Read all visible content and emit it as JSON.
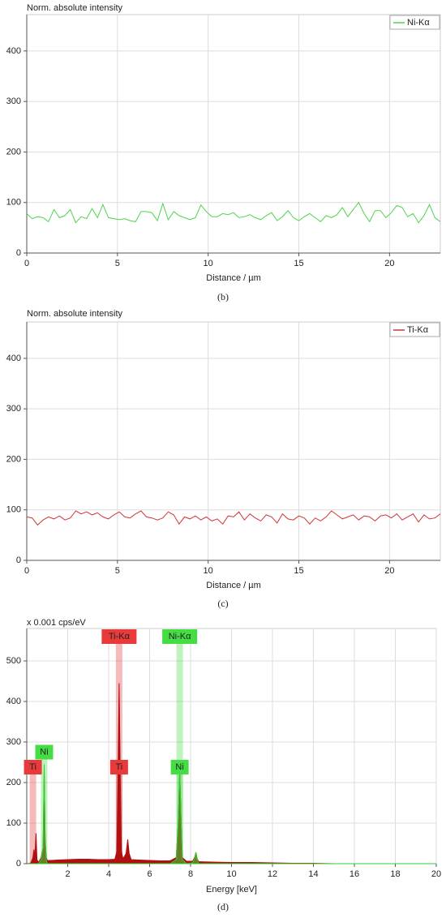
{
  "chart_data": [
    {
      "type": "line",
      "ylabel": "Norm. absolute intensity",
      "xlabel": "Distance / µm",
      "caption": "(b)",
      "x": [
        0,
        0.3,
        0.6,
        0.9,
        1.2,
        1.5,
        1.8,
        2.1,
        2.4,
        2.7,
        3,
        3.3,
        3.6,
        3.9,
        4.2,
        4.5,
        4.8,
        5.1,
        5.4,
        5.7,
        6,
        6.3,
        6.6,
        6.9,
        7.2,
        7.5,
        7.8,
        8.1,
        8.4,
        8.7,
        9,
        9.3,
        9.6,
        9.9,
        10.2,
        10.5,
        10.8,
        11.1,
        11.4,
        11.7,
        12,
        12.3,
        12.6,
        12.9,
        13.2,
        13.5,
        13.8,
        14.1,
        14.4,
        14.7,
        15,
        15.3,
        15.6,
        15.9,
        16.2,
        16.5,
        16.8,
        17.1,
        17.4,
        17.7,
        18,
        18.3,
        18.6,
        18.9,
        19.2,
        19.5,
        19.8,
        20.1,
        20.4,
        20.7,
        21,
        21.3,
        21.6,
        21.9,
        22.2,
        22.5,
        22.8
      ],
      "series": [
        {
          "name": "Ni-Kα",
          "color": "#4cd44c",
          "values": [
            78,
            68,
            72,
            70,
            62,
            86,
            70,
            74,
            86,
            60,
            72,
            68,
            88,
            70,
            96,
            70,
            68,
            66,
            68,
            64,
            62,
            82,
            82,
            80,
            64,
            98,
            66,
            82,
            74,
            70,
            66,
            70,
            95,
            82,
            72,
            72,
            78,
            76,
            80,
            70,
            72,
            76,
            70,
            66,
            74,
            80,
            64,
            72,
            84,
            70,
            64,
            72,
            78,
            70,
            62,
            74,
            70,
            76,
            90,
            72,
            86,
            100,
            78,
            62,
            84,
            84,
            70,
            80,
            94,
            90,
            72,
            78,
            60,
            74,
            96,
            70,
            62
          ]
        }
      ],
      "xlim": [
        0,
        22.8
      ],
      "ylim": [
        0,
        472
      ],
      "xticks": [
        0,
        5,
        10,
        15,
        20
      ],
      "yticks": [
        0,
        100,
        200,
        300,
        400
      ],
      "grid": true,
      "legend": "upper right"
    },
    {
      "type": "line",
      "ylabel": "Norm. absolute intensity",
      "xlabel": "Distance / µm",
      "caption": "(c)",
      "x": [
        0,
        0.3,
        0.6,
        0.9,
        1.2,
        1.5,
        1.8,
        2.1,
        2.4,
        2.7,
        3,
        3.3,
        3.6,
        3.9,
        4.2,
        4.5,
        4.8,
        5.1,
        5.4,
        5.7,
        6,
        6.3,
        6.6,
        6.9,
        7.2,
        7.5,
        7.8,
        8.1,
        8.4,
        8.7,
        9,
        9.3,
        9.6,
        9.9,
        10.2,
        10.5,
        10.8,
        11.1,
        11.4,
        11.7,
        12,
        12.3,
        12.6,
        12.9,
        13.2,
        13.5,
        13.8,
        14.1,
        14.4,
        14.7,
        15,
        15.3,
        15.6,
        15.9,
        16.2,
        16.5,
        16.8,
        17.1,
        17.4,
        17.7,
        18,
        18.3,
        18.6,
        18.9,
        19.2,
        19.5,
        19.8,
        20.1,
        20.4,
        20.7,
        21,
        21.3,
        21.6,
        21.9,
        22.2,
        22.5,
        22.8
      ],
      "series": [
        {
          "name": "Ti-Kα",
          "color": "#d03434",
          "values": [
            86,
            84,
            70,
            80,
            86,
            82,
            88,
            80,
            84,
            98,
            92,
            96,
            90,
            94,
            86,
            82,
            90,
            96,
            86,
            84,
            92,
            98,
            86,
            84,
            80,
            84,
            96,
            90,
            72,
            86,
            82,
            88,
            80,
            86,
            78,
            82,
            72,
            88,
            86,
            96,
            80,
            92,
            84,
            78,
            90,
            86,
            74,
            92,
            82,
            80,
            88,
            84,
            72,
            84,
            78,
            86,
            98,
            90,
            82,
            86,
            90,
            80,
            88,
            86,
            78,
            88,
            90,
            84,
            92,
            80,
            86,
            92,
            76,
            90,
            82,
            84,
            92
          ]
        }
      ],
      "xlim": [
        0,
        22.8
      ],
      "ylim": [
        0,
        472
      ],
      "xticks": [
        0,
        5,
        10,
        15,
        20
      ],
      "yticks": [
        0,
        100,
        200,
        300,
        400
      ],
      "grid": true,
      "legend": "upper right"
    },
    {
      "type": "area",
      "ylabel": "x 0.001 cps/eV",
      "xlabel": "Energy [keV]",
      "caption": "(d)",
      "x": [
        0.1,
        0.2,
        0.3,
        0.35,
        0.4,
        0.45,
        0.5,
        0.55,
        0.6,
        0.7,
        0.8,
        0.85,
        0.9,
        0.95,
        1.0,
        1.2,
        1.5,
        2,
        2.5,
        3,
        3.5,
        4,
        4.3,
        4.4,
        4.45,
        4.51,
        4.57,
        4.62,
        4.7,
        4.85,
        4.93,
        5.0,
        5.1,
        5.5,
        6,
        6.5,
        7,
        7.3,
        7.4,
        7.47,
        7.54,
        7.6,
        7.8,
        8.1,
        8.2,
        8.26,
        8.32,
        8.4,
        9,
        10,
        11,
        12,
        13,
        14,
        15,
        20
      ],
      "series": [
        {
          "name": "Ti",
          "color": "#b01010",
          "values": [
            0,
            2,
            15,
            35,
            20,
            75,
            10,
            5,
            5,
            15,
            40,
            230,
            60,
            15,
            8,
            8,
            9,
            10,
            11,
            11,
            10,
            10,
            11,
            30,
            200,
            445,
            200,
            30,
            12,
            25,
            60,
            25,
            10,
            9,
            8,
            7,
            7,
            15,
            100,
            230,
            100,
            15,
            6,
            6,
            15,
            28,
            12,
            5,
            4,
            3,
            3,
            2,
            1,
            1,
            0,
            0
          ]
        },
        {
          "name": "Ni",
          "color": "#33cc33",
          "values": [
            0,
            0,
            0,
            0,
            0,
            0,
            0,
            0,
            2,
            10,
            40,
            245,
            60,
            10,
            0,
            0,
            0,
            0,
            0,
            0,
            0,
            0,
            0,
            0,
            0,
            0,
            0,
            0,
            0,
            0,
            0,
            0,
            0,
            0,
            0,
            0,
            0,
            10,
            100,
            230,
            100,
            10,
            0,
            2,
            12,
            28,
            10,
            0,
            0,
            0,
            0,
            0,
            0,
            0,
            0,
            0
          ]
        }
      ],
      "annotations": [
        {
          "text": "Ti-Kα",
          "x": 4.51,
          "y": 560,
          "color": "#e83a3a"
        },
        {
          "text": "Ni-Kα",
          "x": 7.47,
          "y": 560,
          "color": "#44dd44"
        },
        {
          "text": "Ti",
          "x": 0.3,
          "y": 238,
          "color": "#e83a3a"
        },
        {
          "text": "Ni",
          "x": 0.85,
          "y": 275,
          "color": "#44dd44"
        },
        {
          "text": "Ti",
          "x": 4.51,
          "y": 238,
          "color": "#e83a3a"
        },
        {
          "text": "Ni",
          "x": 7.47,
          "y": 238,
          "color": "#44dd44"
        }
      ],
      "xlim": [
        0,
        20
      ],
      "ylim": [
        0,
        580
      ],
      "xticks": [
        2,
        4,
        6,
        8,
        10,
        12,
        14,
        16,
        18,
        20
      ],
      "yticks": [
        0,
        100,
        200,
        300,
        400,
        500
      ],
      "grid": true
    }
  ]
}
